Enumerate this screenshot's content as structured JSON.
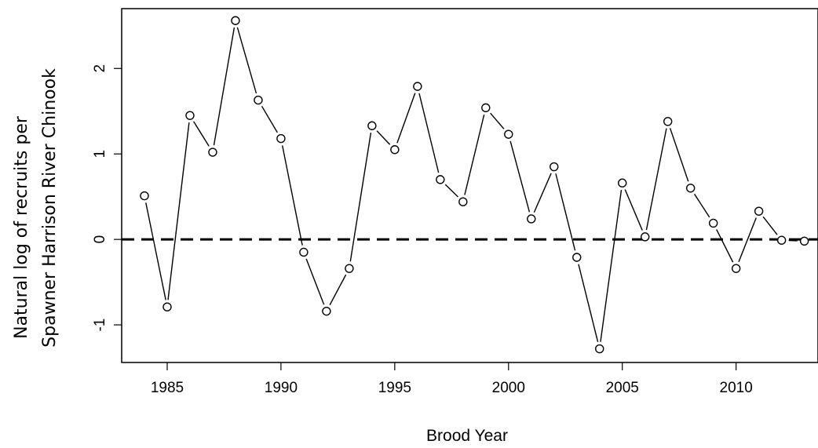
{
  "chart_data": {
    "type": "line",
    "xlabel": "Brood Year",
    "ylabel_lines": [
      "Natural log of recruits per",
      "Spawner Harrison River Chinook"
    ],
    "xlim": [
      1983,
      2013.6
    ],
    "ylim": [
      -1.44,
      2.7
    ],
    "x_ticks": [
      1985,
      1990,
      1995,
      2000,
      2005,
      2010
    ],
    "y_ticks": [
      -1,
      0,
      1,
      2
    ],
    "reference_line": {
      "y": 0,
      "style": "dashed"
    },
    "series": [
      {
        "marker": "open-circle",
        "x": [
          1984,
          1985,
          1986,
          1987,
          1988,
          1989,
          1990,
          1991,
          1992,
          1993,
          1994,
          1995,
          1996,
          1997,
          1998,
          1999,
          2000,
          2001,
          2002,
          2003,
          2004,
          2005,
          2006,
          2007,
          2008,
          2009,
          2010,
          2011,
          2012,
          2013
        ],
        "values": [
          0.51,
          -0.79,
          1.45,
          1.02,
          2.56,
          1.63,
          1.18,
          -0.15,
          -0.84,
          -0.34,
          1.33,
          1.05,
          1.79,
          0.7,
          0.44,
          1.54,
          1.23,
          0.24,
          0.85,
          -0.21,
          -1.28,
          0.66,
          0.03,
          1.38,
          0.6,
          0.19,
          -0.34,
          0.33,
          -0.01,
          -0.02
        ]
      }
    ],
    "grid": false,
    "legend": false
  }
}
